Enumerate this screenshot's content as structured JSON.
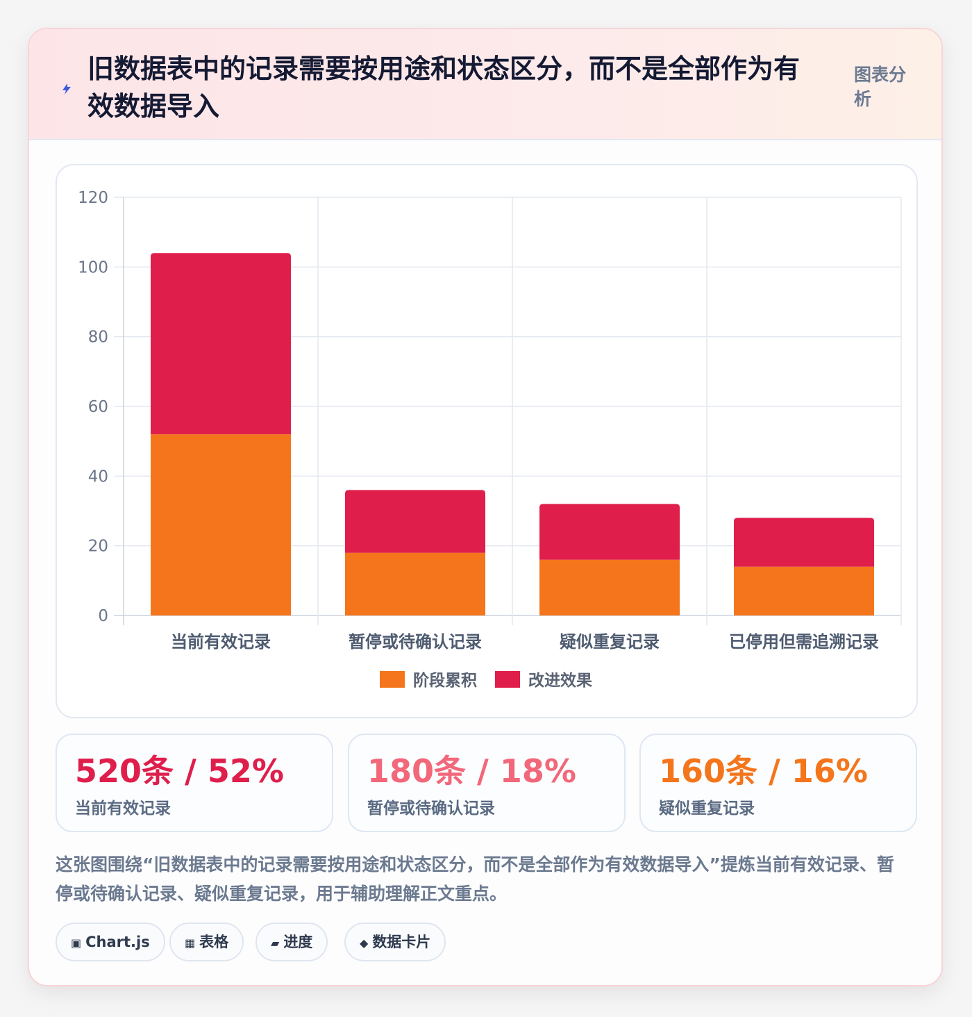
{
  "header": {
    "title": "旧数据表中的记录需要按用途和状态区分，而不是全部作为有效数据导入",
    "tag": "图表分析",
    "icon": "bolt-icon"
  },
  "chart_data": {
    "type": "bar",
    "stacked": true,
    "categories": [
      "当前有效记录",
      "暂停或待确认记录",
      "疑似重复记录",
      "已停用但需追溯记录"
    ],
    "series": [
      {
        "name": "阶段累积",
        "values": [
          52,
          18,
          16,
          14
        ],
        "color": "#f4751b"
      },
      {
        "name": "改进效果",
        "values": [
          52,
          18,
          16,
          14
        ],
        "color": "#df1e4b"
      }
    ],
    "ylim": [
      0,
      120
    ],
    "yticks": [
      0,
      20,
      40,
      60,
      80,
      100,
      120
    ],
    "grid": true,
    "legend_position": "bottom"
  },
  "stats": [
    {
      "value": "520条 / 52%",
      "label": "当前有效记录",
      "color": "#df1e4b"
    },
    {
      "value": "180条 / 18%",
      "label": "暂停或待确认记录",
      "color": "#f2677a"
    },
    {
      "value": "160条 / 16%",
      "label": "疑似重复记录",
      "color": "#f4751b"
    }
  ],
  "summary": "这张图围绕“旧数据表中的记录需要按用途和状态区分，而不是全部作为有效数据导入”提炼当前有效记录、暂停或待确认记录、疑似重复记录，用于辅助理解正文重点。",
  "pills": [
    {
      "icon": "▣",
      "label": "Chart.js"
    },
    {
      "icon": "▦",
      "label": "表格"
    },
    {
      "icon": "▰",
      "label": "进度"
    },
    {
      "icon": "◆",
      "label": "数据卡片"
    }
  ]
}
